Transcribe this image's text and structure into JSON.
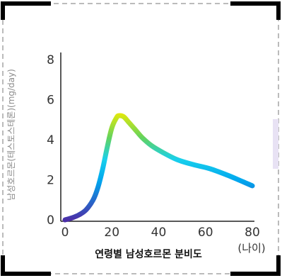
{
  "chart_data": {
    "type": "line",
    "xlabel": "연령별 남성호르몬 분비도",
    "x_unit": "(나이)",
    "ylabel": "남성호르몬(테스토스테론)(mg/day)",
    "xlim": [
      0,
      80
    ],
    "ylim": [
      0,
      8
    ],
    "x_ticks": [
      0,
      20,
      40,
      60,
      80
    ],
    "y_ticks": [
      0,
      2,
      4,
      6,
      8
    ],
    "grid": false,
    "series": [
      {
        "x": [
          0,
          3,
          6,
          9,
          12,
          14,
          16,
          18,
          20,
          22,
          23,
          25,
          27,
          30,
          33,
          37,
          42,
          48,
          55,
          62,
          70,
          76,
          80
        ],
        "y": [
          0,
          0.1,
          0.25,
          0.5,
          1.0,
          1.6,
          2.5,
          3.6,
          4.6,
          5.1,
          5.2,
          5.15,
          4.9,
          4.5,
          4.1,
          3.7,
          3.35,
          3.0,
          2.75,
          2.55,
          2.2,
          1.9,
          1.7
        ]
      }
    ],
    "gradient_colors": [
      "#4b2fa8",
      "#00a5ee",
      "#19d0ec",
      "#64d35c",
      "#f5ec00"
    ]
  }
}
